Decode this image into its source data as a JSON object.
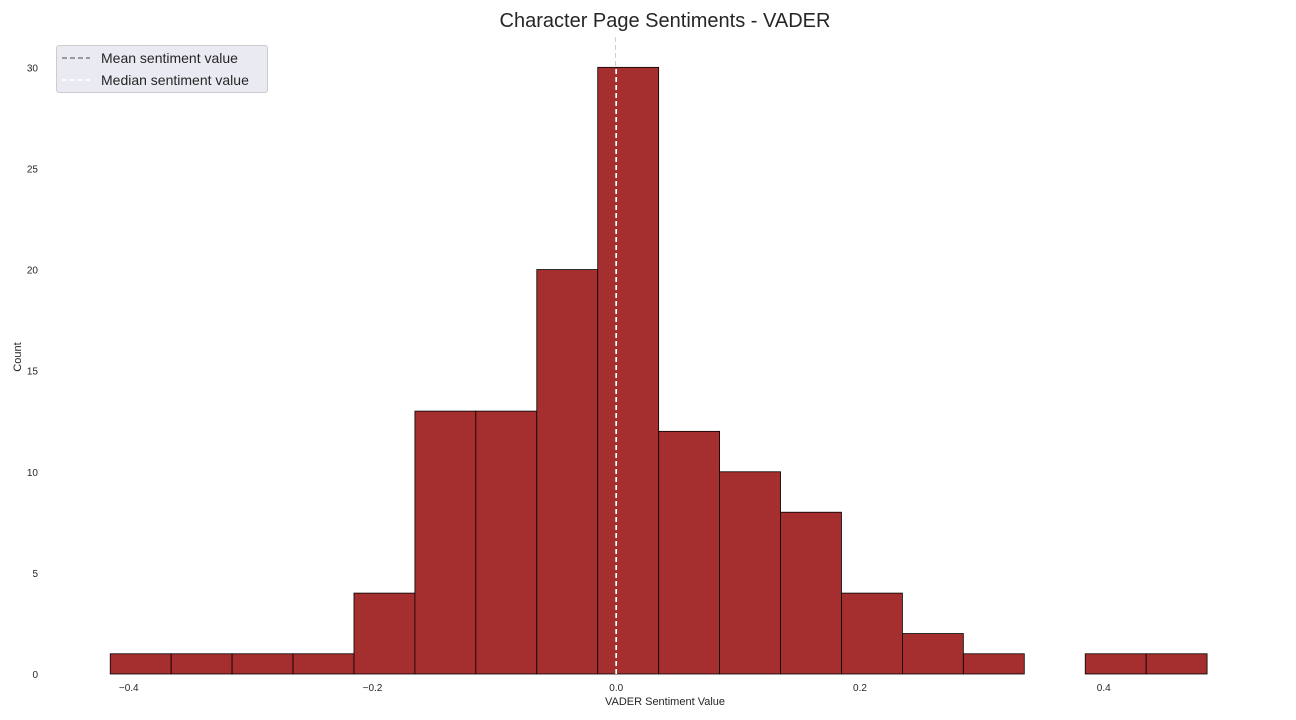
{
  "chart_data": {
    "type": "bar",
    "title": "Character Page Sentiments - VADER",
    "xlabel": "VADER Sentiment Value",
    "ylabel": "Count",
    "bins": [
      {
        "start": -0.4152,
        "end": -0.3652,
        "count": 1
      },
      {
        "start": -0.3652,
        "end": -0.3152,
        "count": 1
      },
      {
        "start": -0.3152,
        "end": -0.2652,
        "count": 1
      },
      {
        "start": -0.2652,
        "end": -0.2152,
        "count": 1
      },
      {
        "start": -0.2152,
        "end": -0.1652,
        "count": 4
      },
      {
        "start": -0.1652,
        "end": -0.1152,
        "count": 13
      },
      {
        "start": -0.1152,
        "end": -0.0652,
        "count": 13
      },
      {
        "start": -0.0652,
        "end": -0.0152,
        "count": 20
      },
      {
        "start": -0.0152,
        "end": 0.0348,
        "count": 30
      },
      {
        "start": 0.0348,
        "end": 0.0848,
        "count": 12
      },
      {
        "start": 0.0848,
        "end": 0.1348,
        "count": 10
      },
      {
        "start": 0.1348,
        "end": 0.1848,
        "count": 8
      },
      {
        "start": 0.1848,
        "end": 0.2348,
        "count": 4
      },
      {
        "start": 0.2348,
        "end": 0.2848,
        "count": 2
      },
      {
        "start": 0.2848,
        "end": 0.3348,
        "count": 1
      },
      {
        "start": 0.3348,
        "end": 0.3848,
        "count": 0
      },
      {
        "start": 0.3848,
        "end": 0.4348,
        "count": 1
      },
      {
        "start": 0.4348,
        "end": 0.4848,
        "count": 1
      }
    ],
    "xlim": [
      -0.44,
      0.52
    ],
    "ylim": [
      0,
      31.5
    ],
    "xticks": [
      -0.4,
      -0.2,
      0.0,
      0.2,
      0.4
    ],
    "xtick_labels": [
      "−0.4",
      "−0.2",
      "0.0",
      "0.2",
      "0.4"
    ],
    "yticks": [
      0,
      5,
      10,
      15,
      20,
      25,
      30
    ],
    "ytick_labels": [
      "0",
      "5",
      "10",
      "15",
      "20",
      "25",
      "30"
    ],
    "mean_line": {
      "label": "Mean sentiment value",
      "value": -0.0003,
      "color": "#808080"
    },
    "median_line": {
      "label": "Median sentiment value",
      "value": 0.0,
      "color": "#ffffff"
    },
    "bar_color": "#a52f2f",
    "edge_color": "#000000",
    "grid": false,
    "legend_position": "upper left"
  }
}
